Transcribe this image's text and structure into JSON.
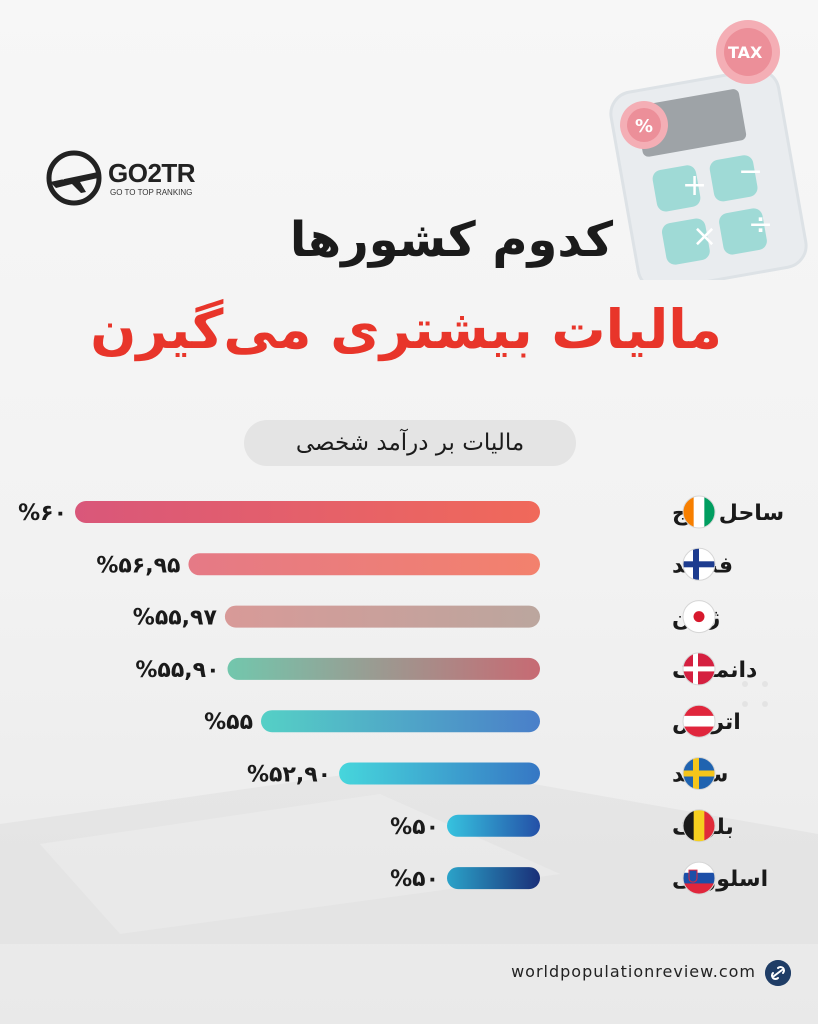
{
  "brand": {
    "name": "GO2TR",
    "tagline": "GO TO TOP RANKING"
  },
  "decor": {
    "tax_label": "TAX",
    "percent_label": "%",
    "calc_keys": [
      "+",
      "−",
      "×",
      "÷"
    ]
  },
  "title_line1": "کدوم کشورها",
  "title_line2": "مالیات بیشتری می‌گیرن",
  "subtitle": "مالیات بر درآمد شخصی",
  "source": "worldpopulationreview.com",
  "colors": {
    "title": "#1b1b1b",
    "accent": "#e8352a",
    "link": "#1f3d66"
  },
  "chart_data": {
    "type": "bar",
    "orientation": "horizontal",
    "categories": [
      "ساحل عاج",
      "فنلاند",
      "ژاپن",
      "دانمارک",
      "اتریش",
      "سوئد",
      "بلژیک",
      "اسلوونی"
    ],
    "values": [
      60,
      56.95,
      55.97,
      55.9,
      55,
      52.9,
      50,
      50
    ],
    "value_labels": [
      "%۶۰",
      "%۵۶,۹۵",
      "%۵۵,۹۷",
      "%۵۵,۹۰",
      "%۵۵",
      "%۵۲,۹۰",
      "%۵۰",
      "%۵۰"
    ],
    "flags": [
      "ivory-coast-flag-icon",
      "finland-flag-icon",
      "japan-flag-icon",
      "denmark-flag-icon",
      "austria-flag-icon",
      "sweden-flag-icon",
      "belgium-flag-icon",
      "slovenia-flag-icon"
    ],
    "bar_gradients": [
      [
        "#d9577a",
        "#f0695a"
      ],
      [
        "#e57a86",
        "#f3816d"
      ],
      [
        "#d89a98",
        "#bba69e"
      ],
      [
        "#72c7ad",
        "#c76a73"
      ],
      [
        "#55d0c6",
        "#4a7fc9"
      ],
      [
        "#46d6dc",
        "#3677c4"
      ],
      [
        "#36c3df",
        "#2450a7"
      ],
      [
        "#2ba3c9",
        "#1a2f78"
      ]
    ]
  }
}
